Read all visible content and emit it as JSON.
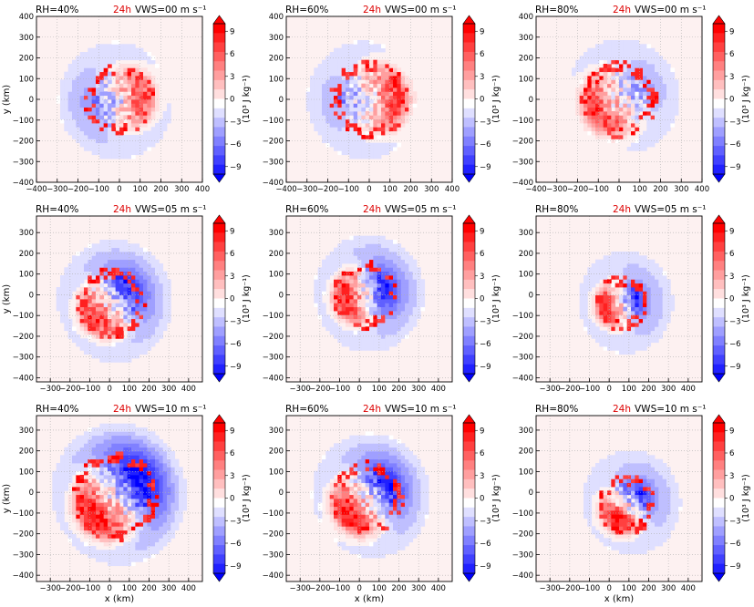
{
  "chart_data": [
    {
      "type": "heatmap",
      "rh": "RH=40%",
      "time": "24h",
      "vws": "VWS=00 m s⁻¹",
      "ylabel": "y (km)",
      "xlabel": "",
      "xlim": [
        -400,
        400
      ],
      "ylim": [
        -400,
        400
      ],
      "xticks": [
        "−400",
        "−300",
        "−200",
        "−100",
        "0",
        "100",
        "200",
        "300",
        "400"
      ],
      "yticks": [
        "400",
        "300",
        "200",
        "100",
        "0",
        "−100",
        "−200",
        "−300",
        "−400"
      ],
      "cbar_label": "(10³ J kg⁻¹)",
      "cbar_ticks": [
        "9",
        "6",
        "3",
        "0",
        "−3",
        "−6",
        "−9"
      ],
      "cbar_range": [
        -10,
        10
      ],
      "features": {
        "cx": 0,
        "cy": 0,
        "ring": 150,
        "shell": -0.25,
        "red": 0.85,
        "blue": 0.55,
        "redCenter": 0,
        "blueCenter": 200,
        "spread": 130
      }
    },
    {
      "type": "heatmap",
      "rh": "RH=60%",
      "time": "24h",
      "vws": "VWS=00 m s⁻¹",
      "ylabel": "",
      "xlabel": "",
      "xlim": [
        -400,
        400
      ],
      "ylim": [
        -400,
        400
      ],
      "xticks": [
        "−400",
        "−300",
        "−200",
        "−100",
        "0",
        "100",
        "200",
        "300",
        "400"
      ],
      "yticks": [
        "400",
        "300",
        "200",
        "100",
        "0",
        "−100",
        "−200",
        "−300",
        "−400"
      ],
      "cbar_label": "(10³ J kg⁻¹)",
      "cbar_ticks": [
        "9",
        "6",
        "3",
        "0",
        "−3",
        "−6",
        "−9"
      ],
      "cbar_range": [
        -10,
        10
      ],
      "features": {
        "cx": 0,
        "cy": 0,
        "ring": 165,
        "shell": -0.2,
        "red": 0.8,
        "blue": 0.45,
        "redCenter": 0,
        "blueCenter": 190,
        "spread": 130
      }
    },
    {
      "type": "heatmap",
      "rh": "RH=80%",
      "time": "24h",
      "vws": "VWS=00 m s⁻¹",
      "ylabel": "",
      "xlabel": "",
      "xlim": [
        -400,
        400
      ],
      "ylim": [
        -400,
        400
      ],
      "xticks": [
        "−400",
        "−300",
        "−200",
        "−100",
        "0",
        "100",
        "200",
        "300",
        "400"
      ],
      "yticks": [
        "400",
        "300",
        "200",
        "100",
        "0",
        "−100",
        "−200",
        "−300",
        "−400"
      ],
      "cbar_label": "(10³ J kg⁻¹)",
      "cbar_ticks": [
        "9",
        "6",
        "3",
        "0",
        "−3",
        "−6",
        "−9"
      ],
      "cbar_range": [
        -10,
        10
      ],
      "features": {
        "cx": 0,
        "cy": 0,
        "ring": 160,
        "shell": -0.2,
        "red": 0.85,
        "blue": 0.5,
        "redCenter": 200,
        "blueCenter": 40,
        "spread": 130
      }
    },
    {
      "type": "heatmap",
      "rh": "RH=40%",
      "time": "24h",
      "vws": "VWS=05 m s⁻¹",
      "ylabel": "y (km)",
      "xlabel": "",
      "xlim": [
        -370,
        470
      ],
      "ylim": [
        -420,
        380
      ],
      "xticks": [
        "−300",
        "−200",
        "−100",
        "0",
        "100",
        "200",
        "300",
        "400"
      ],
      "yticks": [
        "300",
        "200",
        "100",
        "0",
        "−100",
        "−200",
        "−300",
        "−400"
      ],
      "cbar_label": "(10³ J kg⁻¹)",
      "cbar_ticks": [
        "9",
        "6",
        "3",
        "0",
        "−3",
        "−6",
        "−9"
      ],
      "cbar_range": [
        -10,
        10
      ],
      "features": {
        "cx": 10,
        "cy": -40,
        "ring": 150,
        "shell": -0.35,
        "red": 0.95,
        "blue": 0.85,
        "redCenter": 230,
        "blueCenter": 30,
        "spread": 110
      }
    },
    {
      "type": "heatmap",
      "rh": "RH=60%",
      "time": "24h",
      "vws": "VWS=05 m s⁻¹",
      "ylabel": "",
      "xlabel": "",
      "xlim": [
        -370,
        470
      ],
      "ylim": [
        -420,
        380
      ],
      "xticks": [
        "−300",
        "−200",
        "−100",
        "0",
        "100",
        "200",
        "300",
        "400"
      ],
      "yticks": [
        "300",
        "200",
        "100",
        "0",
        "−100",
        "−200",
        "−300",
        "−400"
      ],
      "cbar_label": "(10³ J kg⁻¹)",
      "cbar_ticks": [
        "9",
        "6",
        "3",
        "0",
        "−3",
        "−6",
        "−9"
      ],
      "cbar_range": [
        -10,
        10
      ],
      "features": {
        "cx": 30,
        "cy": 0,
        "ring": 140,
        "shell": -0.35,
        "red": 0.95,
        "blue": 0.8,
        "redCenter": 190,
        "blueCenter": 20,
        "spread": 100
      }
    },
    {
      "type": "heatmap",
      "rh": "RH=80%",
      "time": "24h",
      "vws": "VWS=05 m s⁻¹",
      "ylabel": "",
      "xlabel": "",
      "xlim": [
        -370,
        470
      ],
      "ylim": [
        -420,
        380
      ],
      "xticks": [
        "−300",
        "−200",
        "−100",
        "0",
        "100",
        "200",
        "300",
        "400"
      ],
      "yticks": [
        "300",
        "200",
        "100",
        "0",
        "−100",
        "−200",
        "−300",
        "−400"
      ],
      "cbar_label": "(10³ J kg⁻¹)",
      "cbar_ticks": [
        "9",
        "6",
        "3",
        "0",
        "−3",
        "−6",
        "−9"
      ],
      "cbar_range": [
        -10,
        10
      ],
      "features": {
        "cx": 60,
        "cy": -40,
        "ring": 110,
        "shell": -0.3,
        "red": 0.95,
        "blue": 0.7,
        "redCenter": 200,
        "blueCenter": 10,
        "spread": 100
      }
    },
    {
      "type": "heatmap",
      "rh": "RH=40%",
      "time": "24h",
      "vws": "VWS=10 m s⁻¹",
      "ylabel": "y (km)",
      "xlabel": "x (km)",
      "xlim": [
        -370,
        470
      ],
      "ylim": [
        -430,
        370
      ],
      "xticks": [
        "−300",
        "−200",
        "−100",
        "0",
        "100",
        "200",
        "300",
        "400"
      ],
      "yticks": [
        "300",
        "200",
        "100",
        "0",
        "−100",
        "−200",
        "−300",
        "−400"
      ],
      "cbar_label": "(10³ J kg⁻¹)",
      "cbar_ticks": [
        "9",
        "6",
        "3",
        "0",
        "−3",
        "−6",
        "−9"
      ],
      "cbar_range": [
        -10,
        10
      ],
      "features": {
        "cx": 30,
        "cy": -20,
        "ring": 190,
        "shell": -0.45,
        "red": 1.0,
        "blue": 0.95,
        "redCenter": 225,
        "blueCenter": 35,
        "spread": 100
      }
    },
    {
      "type": "heatmap",
      "rh": "RH=60%",
      "time": "24h",
      "vws": "VWS=10 m s⁻¹",
      "ylabel": "",
      "xlabel": "x (km)",
      "xlim": [
        -370,
        470
      ],
      "ylim": [
        -430,
        370
      ],
      "xticks": [
        "−300",
        "−200",
        "−100",
        "0",
        "100",
        "200",
        "300",
        "400"
      ],
      "yticks": [
        "300",
        "200",
        "100",
        "0",
        "−100",
        "−200",
        "−300",
        "−400"
      ],
      "cbar_label": "(10³ J kg⁻¹)",
      "cbar_ticks": [
        "9",
        "6",
        "3",
        "0",
        "−3",
        "−6",
        "−9"
      ],
      "cbar_range": [
        -10,
        10
      ],
      "features": {
        "cx": 40,
        "cy": -30,
        "ring": 160,
        "shell": -0.35,
        "red": 1.0,
        "blue": 0.85,
        "redCenter": 215,
        "blueCenter": 40,
        "spread": 95
      }
    },
    {
      "type": "heatmap",
      "rh": "RH=80%",
      "time": "24h",
      "vws": "VWS=10 m s⁻¹",
      "ylabel": "",
      "xlabel": "x (km)",
      "xlim": [
        -370,
        470
      ],
      "ylim": [
        -430,
        370
      ],
      "xticks": [
        "−300",
        "−200",
        "−100",
        "0",
        "100",
        "200",
        "300",
        "400"
      ],
      "yticks": [
        "300",
        "200",
        "100",
        "0",
        "−100",
        "−200",
        "−300",
        "−400"
      ],
      "cbar_label": "(10³ J kg⁻¹)",
      "cbar_ticks": [
        "9",
        "6",
        "3",
        "0",
        "−3",
        "−6",
        "−9"
      ],
      "cbar_range": [
        -10,
        10
      ],
      "features": {
        "cx": 90,
        "cy": -60,
        "ring": 120,
        "shell": -0.3,
        "red": 1.0,
        "blue": 0.75,
        "redCenter": 240,
        "blueCenter": 30,
        "spread": 90
      }
    }
  ],
  "colors": {
    "time_label": "#dd0000",
    "text": "#000000",
    "grid": "#b0b0b0"
  }
}
